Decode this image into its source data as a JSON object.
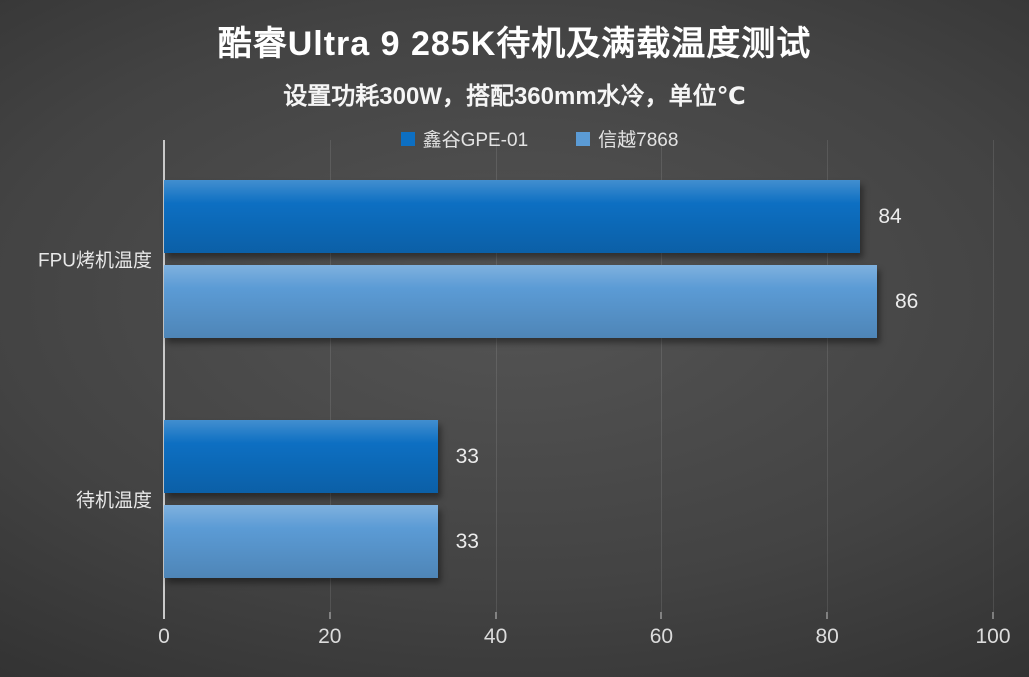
{
  "title": "酷睿Ultra 9 285K待机及满载温度测试",
  "subtitle": "设置功耗300W，搭配360mm水冷，单位℃",
  "legend": [
    {
      "label": "鑫谷GPE-01",
      "color": "#0d6fc2"
    },
    {
      "label": "信越7868",
      "color": "#5b9bd5"
    }
  ],
  "chart_data": {
    "type": "bar",
    "orientation": "horizontal",
    "title": "酷睿Ultra 9 285K待机及满载温度测试",
    "subtitle": "设置功耗300W，搭配360mm水冷，单位℃",
    "categories": [
      "FPU烤机温度",
      "待机温度"
    ],
    "series": [
      {
        "name": "鑫谷GPE-01",
        "color": "#0d6fc2",
        "values": [
          84,
          33
        ]
      },
      {
        "name": "信越7868",
        "color": "#5b9bd5",
        "values": [
          86,
          33
        ]
      }
    ],
    "xlim": [
      0,
      100
    ],
    "xticks": [
      0,
      20,
      40,
      60,
      80,
      100
    ],
    "grid": true,
    "legend_position": "top",
    "value_labels": [
      [
        84,
        33
      ],
      [
        86,
        33
      ]
    ],
    "unit": "℃"
  },
  "colors": {
    "background_center": "#545454",
    "background_edge": "#232323",
    "axis_line": "#c9c9c9",
    "text": "#ececec"
  }
}
